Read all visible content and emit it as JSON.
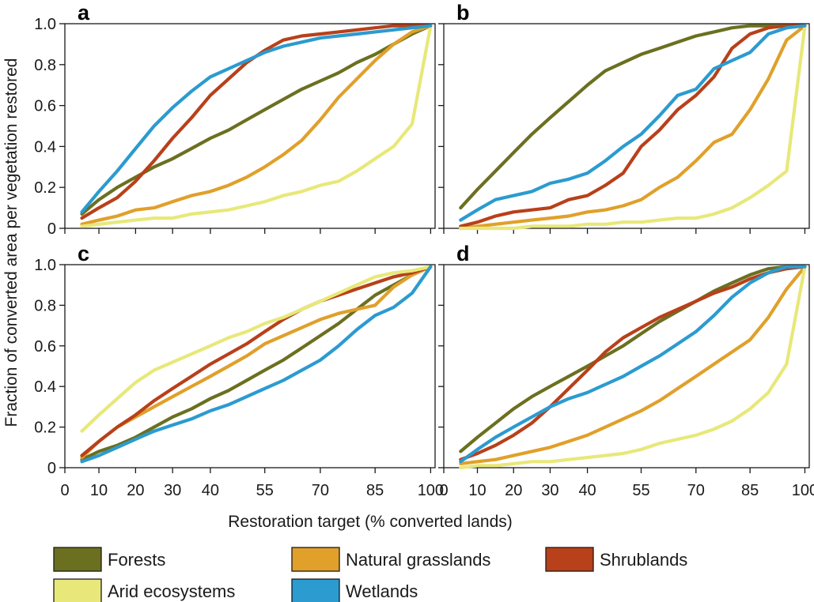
{
  "ylabel": "Fraction of converted area per vegetation restored",
  "xlabel": "Restoration target (% converted lands)",
  "legend": [
    {
      "key": "forests",
      "label": "Forests",
      "color": "#6b7020"
    },
    {
      "key": "grass",
      "label": "Natural grasslands",
      "color": "#e0a02a"
    },
    {
      "key": "shrub",
      "label": "Shrublands",
      "color": "#b8401a"
    },
    {
      "key": "arid",
      "label": "Arid ecosystems",
      "color": "#e8e87a"
    },
    {
      "key": "wet",
      "label": "Wetlands",
      "color": "#2b9bd0"
    }
  ],
  "chart_data": [
    {
      "type": "line",
      "panel": "a",
      "x": [
        5,
        10,
        15,
        20,
        25,
        30,
        35,
        40,
        45,
        50,
        55,
        60,
        65,
        70,
        75,
        80,
        85,
        90,
        95,
        100
      ],
      "xticks": [
        "0",
        "10",
        "20",
        "30",
        "40",
        "55",
        "70",
        "85",
        "100"
      ],
      "yticks": [
        "0",
        "0.2",
        "0.4",
        "0.6",
        "0.8",
        "1.0"
      ],
      "xlim": [
        0,
        100
      ],
      "ylim": [
        0,
        1
      ],
      "series": [
        {
          "name": "Forests",
          "color": "#6b7020",
          "values": [
            0.07,
            0.14,
            0.2,
            0.25,
            0.3,
            0.34,
            0.39,
            0.44,
            0.48,
            0.53,
            0.58,
            0.63,
            0.68,
            0.72,
            0.76,
            0.81,
            0.85,
            0.9,
            0.95,
            0.99
          ]
        },
        {
          "name": "Natural grasslands",
          "color": "#e0a02a",
          "values": [
            0.02,
            0.04,
            0.06,
            0.09,
            0.1,
            0.13,
            0.16,
            0.18,
            0.21,
            0.25,
            0.3,
            0.36,
            0.43,
            0.53,
            0.64,
            0.73,
            0.82,
            0.9,
            0.96,
            0.99
          ]
        },
        {
          "name": "Shrublands",
          "color": "#b8401a",
          "values": [
            0.05,
            0.1,
            0.15,
            0.23,
            0.33,
            0.44,
            0.54,
            0.65,
            0.73,
            0.81,
            0.87,
            0.92,
            0.94,
            0.95,
            0.96,
            0.97,
            0.98,
            0.99,
            0.99,
            0.99
          ]
        },
        {
          "name": "Arid ecosystems",
          "color": "#e8e87a",
          "values": [
            0.01,
            0.02,
            0.03,
            0.04,
            0.05,
            0.05,
            0.07,
            0.08,
            0.09,
            0.11,
            0.13,
            0.16,
            0.18,
            0.21,
            0.23,
            0.28,
            0.34,
            0.4,
            0.51,
            0.99
          ]
        },
        {
          "name": "Wetlands",
          "color": "#2b9bd0",
          "values": [
            0.08,
            0.18,
            0.28,
            0.39,
            0.5,
            0.59,
            0.67,
            0.74,
            0.78,
            0.82,
            0.86,
            0.89,
            0.91,
            0.93,
            0.94,
            0.95,
            0.96,
            0.97,
            0.98,
            0.99
          ]
        }
      ]
    },
    {
      "type": "line",
      "panel": "b",
      "x": [
        5,
        10,
        15,
        20,
        25,
        30,
        35,
        40,
        45,
        50,
        55,
        60,
        65,
        70,
        75,
        80,
        85,
        90,
        95,
        100
      ],
      "xticks": [
        "0",
        "10",
        "20",
        "30",
        "40",
        "55",
        "70",
        "85",
        "100"
      ],
      "yticks": [
        "0",
        "0.2",
        "0.4",
        "0.6",
        "0.8",
        "1.0"
      ],
      "xlim": [
        0,
        100
      ],
      "ylim": [
        0,
        1
      ],
      "series": [
        {
          "name": "Forests",
          "color": "#6b7020",
          "values": [
            0.1,
            0.19,
            0.28,
            0.37,
            0.46,
            0.54,
            0.62,
            0.7,
            0.77,
            0.81,
            0.85,
            0.88,
            0.91,
            0.94,
            0.96,
            0.98,
            0.99,
            0.99,
            0.99,
            0.99
          ]
        },
        {
          "name": "Natural grasslands",
          "color": "#e0a02a",
          "values": [
            0.0,
            0.01,
            0.02,
            0.03,
            0.04,
            0.05,
            0.06,
            0.08,
            0.09,
            0.11,
            0.14,
            0.2,
            0.25,
            0.33,
            0.42,
            0.46,
            0.58,
            0.73,
            0.92,
            0.99
          ]
        },
        {
          "name": "Shrublands",
          "color": "#b8401a",
          "values": [
            0.01,
            0.03,
            0.06,
            0.08,
            0.09,
            0.1,
            0.14,
            0.16,
            0.21,
            0.27,
            0.4,
            0.48,
            0.58,
            0.65,
            0.74,
            0.88,
            0.95,
            0.98,
            0.99,
            0.99
          ]
        },
        {
          "name": "Arid ecosystems",
          "color": "#e8e87a",
          "values": [
            0.0,
            0.0,
            0.0,
            0.0,
            0.01,
            0.01,
            0.01,
            0.02,
            0.02,
            0.03,
            0.03,
            0.04,
            0.05,
            0.05,
            0.07,
            0.1,
            0.15,
            0.21,
            0.28,
            0.99
          ]
        },
        {
          "name": "Wetlands",
          "color": "#2b9bd0",
          "values": [
            0.04,
            0.09,
            0.14,
            0.16,
            0.18,
            0.22,
            0.24,
            0.27,
            0.33,
            0.4,
            0.46,
            0.55,
            0.65,
            0.68,
            0.78,
            0.82,
            0.86,
            0.95,
            0.98,
            0.99
          ]
        }
      ]
    },
    {
      "type": "line",
      "panel": "c",
      "x": [
        5,
        10,
        15,
        20,
        25,
        30,
        35,
        40,
        45,
        50,
        55,
        60,
        65,
        70,
        75,
        80,
        85,
        90,
        95,
        100
      ],
      "xticks": [
        "0",
        "10",
        "20",
        "30",
        "40",
        "55",
        "70",
        "85",
        "100"
      ],
      "yticks": [
        "0",
        "0.2",
        "0.4",
        "0.6",
        "0.8",
        "1.0"
      ],
      "xlim": [
        0,
        100
      ],
      "ylim": [
        0,
        1
      ],
      "series": [
        {
          "name": "Forests",
          "color": "#6b7020",
          "values": [
            0.04,
            0.08,
            0.11,
            0.15,
            0.2,
            0.25,
            0.29,
            0.34,
            0.38,
            0.43,
            0.48,
            0.53,
            0.59,
            0.65,
            0.71,
            0.78,
            0.85,
            0.9,
            0.95,
            0.99
          ]
        },
        {
          "name": "Natural grasslands",
          "color": "#e0a02a",
          "values": [
            0.05,
            0.13,
            0.2,
            0.25,
            0.3,
            0.35,
            0.4,
            0.45,
            0.5,
            0.55,
            0.61,
            0.65,
            0.69,
            0.73,
            0.76,
            0.78,
            0.8,
            0.89,
            0.95,
            0.99
          ]
        },
        {
          "name": "Shrublands",
          "color": "#b8401a",
          "values": [
            0.06,
            0.13,
            0.2,
            0.26,
            0.33,
            0.39,
            0.45,
            0.51,
            0.56,
            0.61,
            0.67,
            0.73,
            0.78,
            0.82,
            0.85,
            0.88,
            0.91,
            0.94,
            0.96,
            0.99
          ]
        },
        {
          "name": "Arid ecosystems",
          "color": "#e8e87a",
          "values": [
            0.18,
            0.26,
            0.34,
            0.42,
            0.48,
            0.52,
            0.56,
            0.6,
            0.64,
            0.67,
            0.71,
            0.74,
            0.78,
            0.82,
            0.86,
            0.9,
            0.94,
            0.96,
            0.97,
            0.99
          ]
        },
        {
          "name": "Wetlands",
          "color": "#2b9bd0",
          "values": [
            0.03,
            0.06,
            0.1,
            0.14,
            0.18,
            0.21,
            0.24,
            0.28,
            0.31,
            0.35,
            0.39,
            0.43,
            0.48,
            0.53,
            0.6,
            0.68,
            0.75,
            0.79,
            0.86,
            0.99
          ]
        }
      ]
    },
    {
      "type": "line",
      "panel": "d",
      "x": [
        5,
        10,
        15,
        20,
        25,
        30,
        35,
        40,
        45,
        50,
        55,
        60,
        65,
        70,
        75,
        80,
        85,
        90,
        95,
        100
      ],
      "xticks": [
        "0",
        "10",
        "20",
        "30",
        "40",
        "55",
        "70",
        "85",
        "100"
      ],
      "yticks": [
        "0",
        "0.2",
        "0.4",
        "0.6",
        "0.8",
        "1.0"
      ],
      "xlim": [
        0,
        100
      ],
      "ylim": [
        0,
        1
      ],
      "series": [
        {
          "name": "Forests",
          "color": "#6b7020",
          "values": [
            0.08,
            0.15,
            0.22,
            0.29,
            0.35,
            0.4,
            0.45,
            0.5,
            0.55,
            0.6,
            0.66,
            0.72,
            0.77,
            0.82,
            0.87,
            0.91,
            0.95,
            0.98,
            0.99,
            0.99
          ]
        },
        {
          "name": "Natural grasslands",
          "color": "#e0a02a",
          "values": [
            0.02,
            0.03,
            0.04,
            0.06,
            0.08,
            0.1,
            0.13,
            0.16,
            0.2,
            0.24,
            0.28,
            0.33,
            0.39,
            0.45,
            0.51,
            0.57,
            0.63,
            0.74,
            0.88,
            0.99
          ]
        },
        {
          "name": "Shrublands",
          "color": "#b8401a",
          "values": [
            0.04,
            0.07,
            0.11,
            0.16,
            0.22,
            0.3,
            0.39,
            0.48,
            0.57,
            0.64,
            0.69,
            0.74,
            0.78,
            0.82,
            0.86,
            0.89,
            0.93,
            0.96,
            0.98,
            0.99
          ]
        },
        {
          "name": "Arid ecosystems",
          "color": "#e8e87a",
          "values": [
            0.0,
            0.01,
            0.01,
            0.02,
            0.03,
            0.03,
            0.04,
            0.05,
            0.06,
            0.07,
            0.09,
            0.12,
            0.14,
            0.16,
            0.19,
            0.23,
            0.29,
            0.37,
            0.51,
            0.99
          ]
        },
        {
          "name": "Wetlands",
          "color": "#2b9bd0",
          "values": [
            0.03,
            0.09,
            0.15,
            0.2,
            0.25,
            0.3,
            0.34,
            0.37,
            0.41,
            0.45,
            0.5,
            0.55,
            0.61,
            0.67,
            0.75,
            0.84,
            0.91,
            0.96,
            0.99,
            0.99
          ]
        }
      ]
    }
  ]
}
